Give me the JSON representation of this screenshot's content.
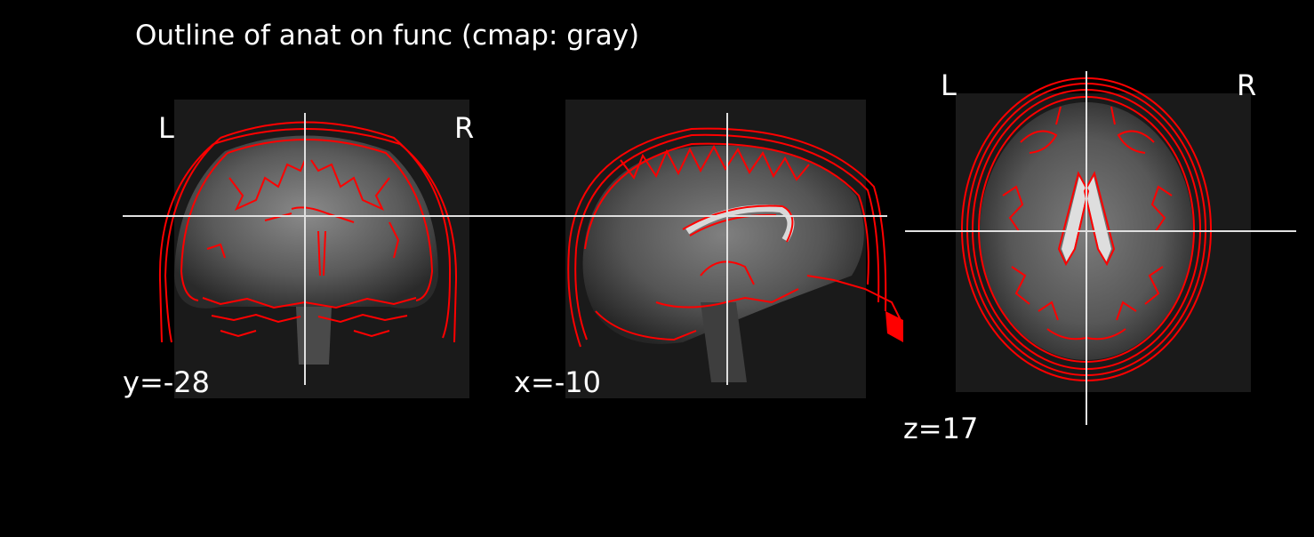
{
  "figure": {
    "title": "Outline of anat on func (cmap: gray)",
    "background_color": "#000000",
    "outline_color": "#ff0000",
    "crosshair_color": "#e0e0e0"
  },
  "panels": [
    {
      "id": "coronal",
      "left_label": "L",
      "right_label": "R",
      "coord_label": "y=-28"
    },
    {
      "id": "sagittal",
      "coord_label": "x=-10"
    },
    {
      "id": "axial",
      "left_label": "L",
      "right_label": "R",
      "coord_label": "z=17"
    }
  ]
}
